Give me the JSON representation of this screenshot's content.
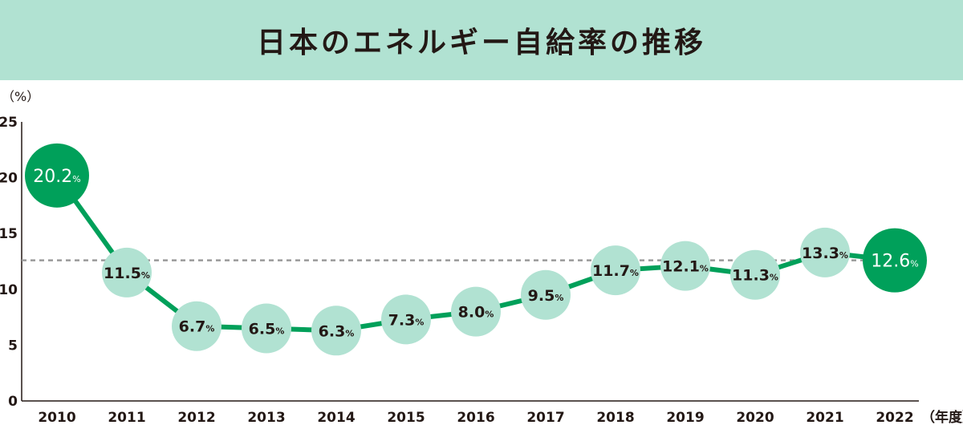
{
  "chart_data": {
    "type": "line",
    "title": "日本のエネルギー自給率の推移",
    "ylabel": "（%）",
    "xlabel": "（年度）",
    "ylim": [
      0,
      25
    ],
    "yticks": [
      0,
      5,
      10,
      15,
      20,
      25
    ],
    "categories": [
      "2010",
      "2011",
      "2012",
      "2013",
      "2014",
      "2015",
      "2016",
      "2017",
      "2018",
      "2019",
      "2020",
      "2021",
      "2022"
    ],
    "values": [
      20.2,
      11.5,
      6.7,
      6.5,
      6.3,
      7.3,
      8.0,
      9.5,
      11.7,
      12.1,
      11.3,
      13.3,
      12.6
    ],
    "labels": [
      "20.2",
      "11.5",
      "6.7",
      "6.5",
      "6.3",
      "7.3",
      "8.0",
      "9.5",
      "11.7",
      "12.1",
      "11.3",
      "13.3",
      "12.6"
    ],
    "unit": "%",
    "highlighted": [
      "2010",
      "2022"
    ],
    "reference_line": {
      "value": 12.6,
      "style": "dashed"
    },
    "grid": false,
    "colors": {
      "line": "#00a05a",
      "highlight": "#00a05a",
      "marker": "#b1e2d2",
      "reference": "#9a9a9a",
      "header": "#b1e2d2"
    }
  }
}
